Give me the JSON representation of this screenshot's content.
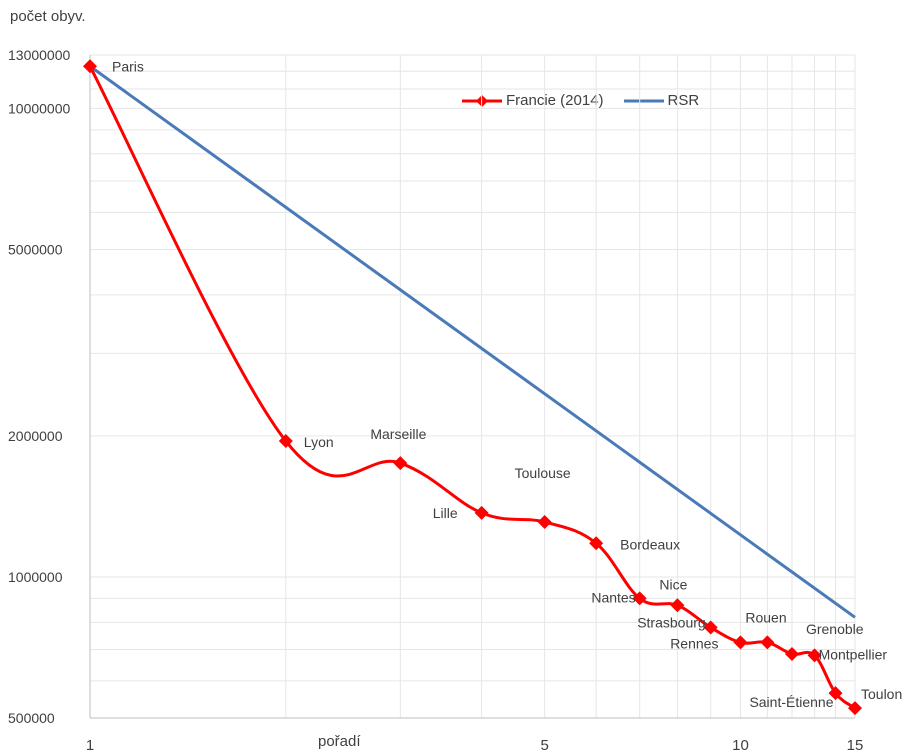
{
  "chart_data": {
    "type": "line",
    "ylabel": "počet obyv.",
    "xlabel": "pořadí",
    "xscale": "log",
    "yscale": "log",
    "xlim": [
      1,
      15
    ],
    "ylim": [
      500000,
      13000000
    ],
    "y_ticks": [
      500000,
      1000000,
      2000000,
      5000000,
      10000000,
      13000000
    ],
    "y_tick_labels": [
      "500000",
      "1000000",
      "2000000",
      "5000000",
      "10000000",
      "13000000"
    ],
    "x_ticks": [
      1,
      5,
      10,
      15
    ],
    "x_tick_labels": [
      "1",
      "5",
      "10",
      "15"
    ],
    "grid": true,
    "legend_position": "top-right",
    "series": [
      {
        "name": "Francie (2014)",
        "color": "#ff0000",
        "marker": "diamond",
        "points": [
          {
            "x": 1,
            "y": 12300000,
            "label": "Paris"
          },
          {
            "x": 2,
            "y": 1950000,
            "label": "Lyon"
          },
          {
            "x": 3,
            "y": 1750000,
            "label": "Marseille"
          },
          {
            "x": 4,
            "y": 1370000,
            "label": "Lille"
          },
          {
            "x": 5,
            "y": 1310000,
            "label": "Toulouse"
          },
          {
            "x": 6,
            "y": 1180000,
            "label": "Bordeaux"
          },
          {
            "x": 7,
            "y": 900000,
            "label": "Nantes"
          },
          {
            "x": 8,
            "y": 870000,
            "label": "Nice"
          },
          {
            "x": 9,
            "y": 780000,
            "label": "Strasbourg"
          },
          {
            "x": 10,
            "y": 725000,
            "label": "Rennes"
          },
          {
            "x": 11,
            "y": 725000,
            "label": "Rouen"
          },
          {
            "x": 12,
            "y": 685000,
            "label": "Grenoble"
          },
          {
            "x": 13,
            "y": 680000,
            "label": "Montpellier"
          },
          {
            "x": 14,
            "y": 565000,
            "label": "Saint-Étienne"
          },
          {
            "x": 15,
            "y": 525000,
            "label": "Toulon"
          }
        ]
      },
      {
        "name": "RSR",
        "color": "#4a7ab8",
        "points": [
          {
            "x": 1,
            "y": 12300000
          },
          {
            "x": 15,
            "y": 820000
          }
        ]
      }
    ]
  }
}
